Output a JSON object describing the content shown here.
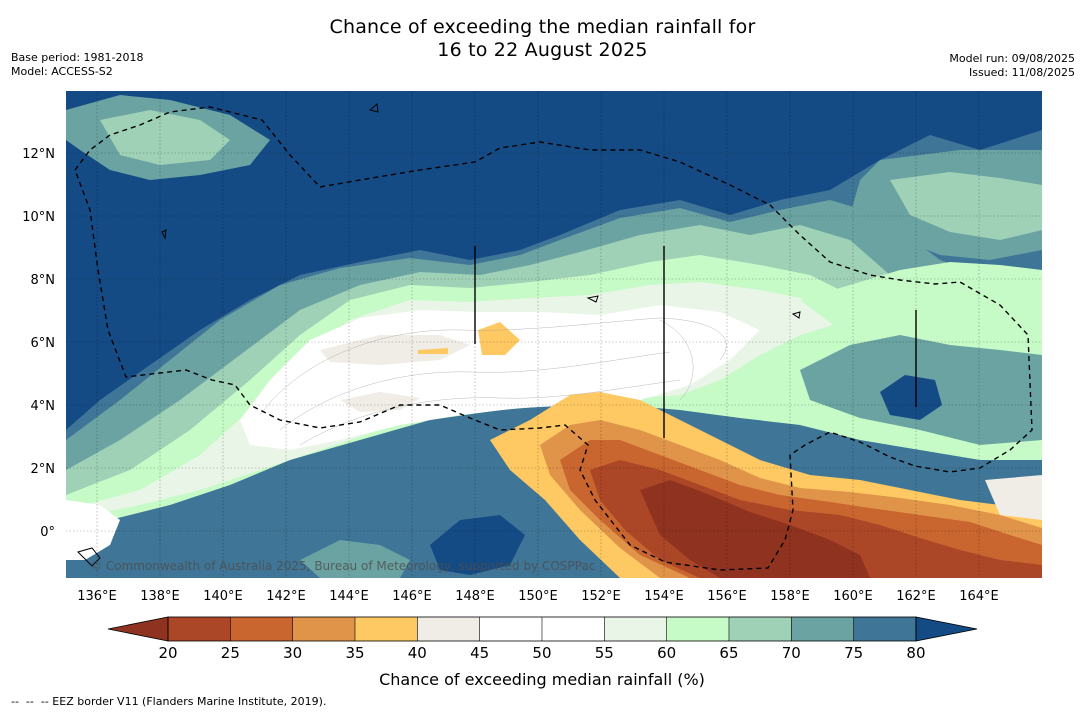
{
  "title": {
    "line1": "Chance of exceeding the median rainfall for",
    "line2": "16 to 22 August 2025"
  },
  "meta": {
    "base_period": "Base period: 1981-2018",
    "model": "Model: ACCESS-S2",
    "model_run": "Model run: 09/08/2025",
    "issued": "Issued: 11/08/2025"
  },
  "map": {
    "region": "Micronesia / western Pacific",
    "lon_range": [
      135,
      166
    ],
    "lat_range": [
      -1.5,
      14
    ],
    "lon_ticks": [
      "136°E",
      "138°E",
      "140°E",
      "142°E",
      "144°E",
      "146°E",
      "148°E",
      "150°E",
      "152°E",
      "154°E",
      "156°E",
      "158°E",
      "160°E",
      "162°E",
      "164°E"
    ],
    "lat_ticks": [
      "12°N",
      "10°N",
      "8°N",
      "6°N",
      "4°N",
      "2°N",
      "0°"
    ],
    "grid": true,
    "copyright": "© Commonwealth of Australia 2025, Bureau of Meteorology, supported by COSPPac"
  },
  "colorbar": {
    "levels": [
      20,
      25,
      30,
      35,
      40,
      45,
      50,
      55,
      60,
      65,
      70,
      75,
      80
    ],
    "tick_labels": [
      "20",
      "25",
      "30",
      "35",
      "40",
      "45",
      "50",
      "55",
      "60",
      "65",
      "70",
      "75",
      "80"
    ],
    "below_color": "#8f3320",
    "above_color": "#154b85",
    "colors": [
      "#ab4626",
      "#c9652f",
      "#e0944a",
      "#fec962",
      "#efede6",
      "#ffffff",
      "#ffffff",
      "#e9f5e7",
      "#c6fbc7",
      "#9fd1b7",
      "#6aa3a2",
      "#3f7596"
    ],
    "label": "Chance of exceeding median rainfall (%)"
  },
  "footnote": "--  --  -- EEZ border V11 (Flanders Marine Institute, 2019)."
}
